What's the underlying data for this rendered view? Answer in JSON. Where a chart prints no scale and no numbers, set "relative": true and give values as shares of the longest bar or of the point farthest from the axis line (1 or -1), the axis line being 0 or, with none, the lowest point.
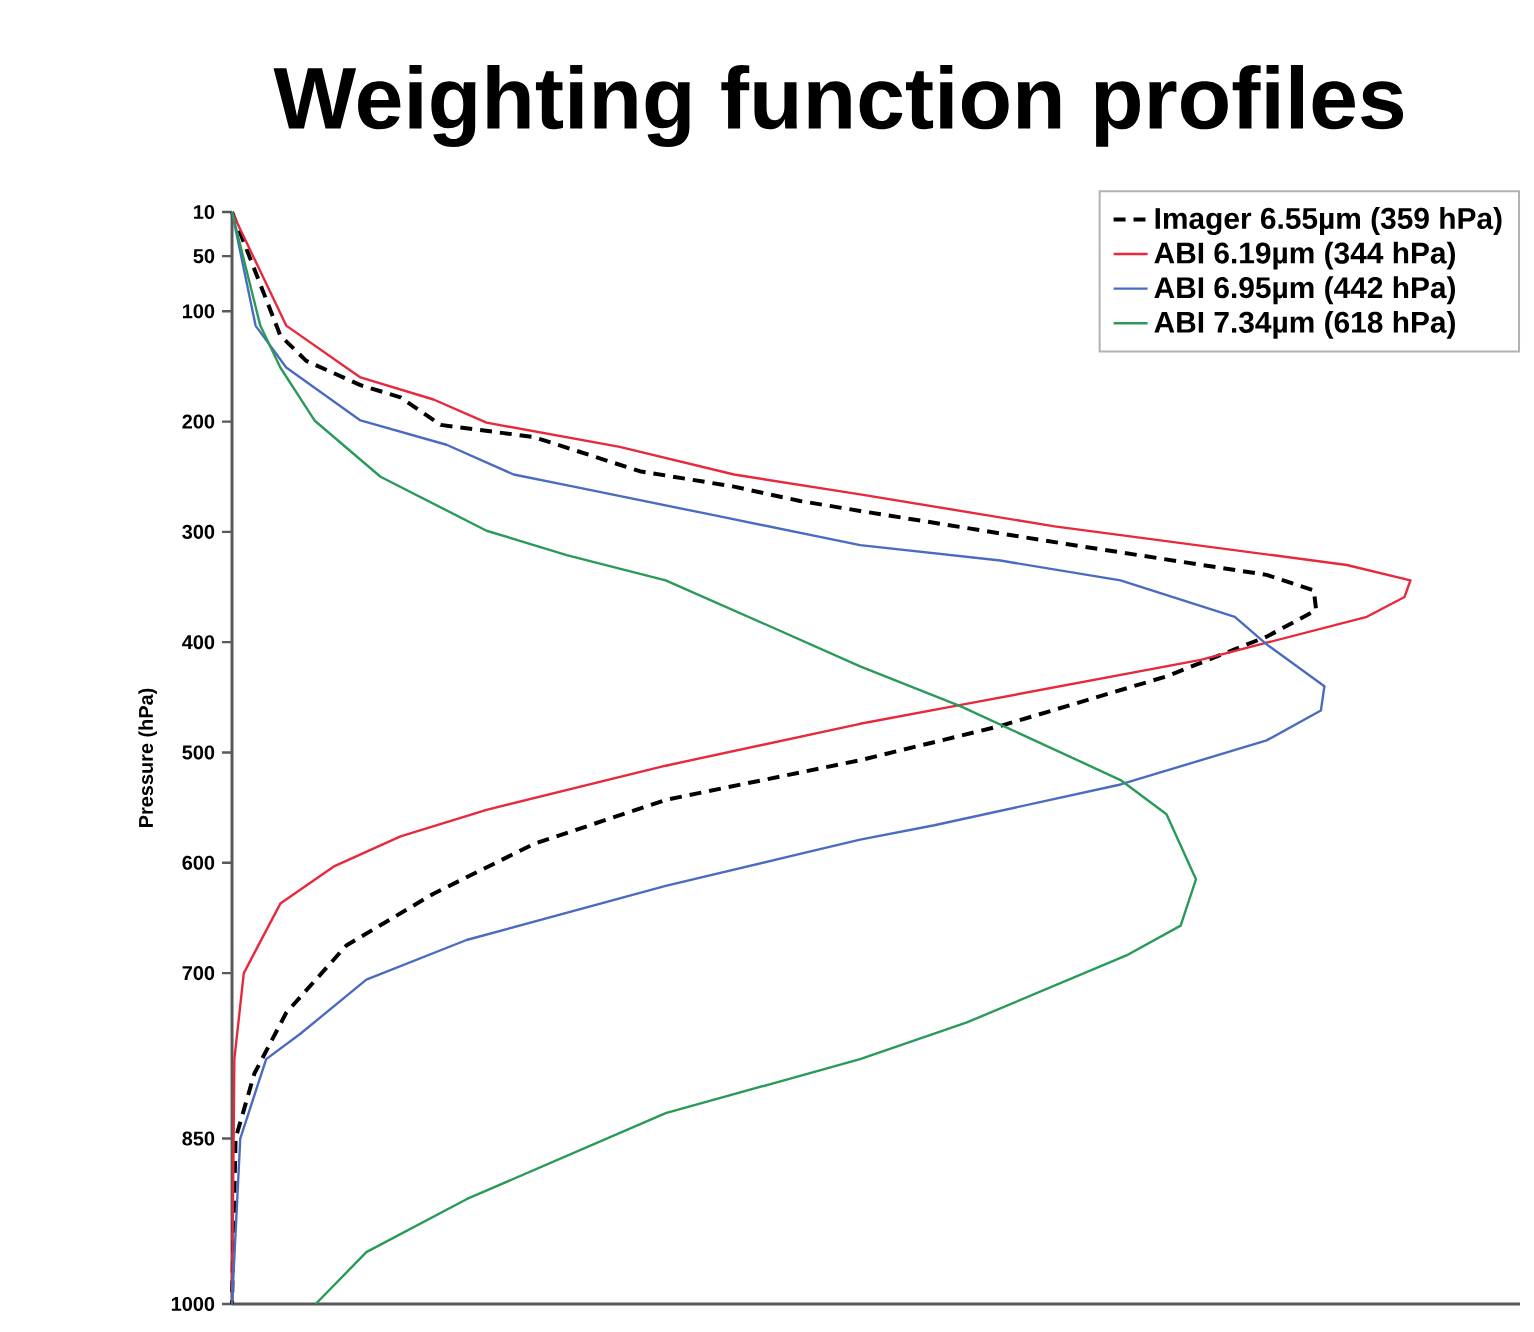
{
  "chart_data": {
    "type": "line",
    "title": "Weighting function profiles",
    "ylabel": "Pressure (hPa)",
    "relative": true,
    "orientation": "horizontal",
    "ylim": [
      1000,
      10
    ],
    "yticks": [
      10,
      50,
      100,
      200,
      300,
      400,
      500,
      600,
      700,
      850,
      1000
    ],
    "legend": "top right",
    "marker": "none",
    "series": [
      {
        "name": "Imager 6.55µm (359 hPa)",
        "color": "#000000",
        "line_style": "dashed",
        "values": [
          0,
          0.041,
          0.063,
          0.109,
          0.143,
          0.177,
          0.256,
          0.346,
          0.426,
          0.482,
          0.533,
          0.708,
          0.878,
          0.918,
          0.92,
          0.878,
          0.793,
          0.652,
          0.533,
          0.368,
          0.256,
          0.171,
          0.097,
          0.046,
          0.019,
          0.003,
          0
        ],
        "x": [
          10,
          122,
          145,
          167,
          178,
          203,
          214,
          245,
          259,
          272,
          281,
          311,
          339,
          353,
          371,
          395,
          431,
          476,
          507,
          543,
          583,
          628,
          675,
          736,
          791,
          850,
          1000
        ]
      },
      {
        "name": "ABI 6.19µm (344 hPa)",
        "color": "#e8283c",
        "line_style": "solid",
        "values": [
          0,
          0.046,
          0.109,
          0.171,
          0.216,
          0.329,
          0.426,
          0.533,
          0.698,
          0.946,
          1,
          0.995,
          0.963,
          0.822,
          0.623,
          0.533,
          0.368,
          0.216,
          0.143,
          0.087,
          0.041,
          0.01,
          0.002,
          0
        ],
        "x": [
          10,
          113,
          160,
          180,
          201,
          223,
          248,
          266,
          295,
          330,
          344,
          359,
          377,
          416,
          456,
          474,
          512,
          552,
          576,
          603,
          637,
          700,
          778,
          1000
        ]
      },
      {
        "name": "ABI 6.95µm (442 hPa)",
        "color": "#4a6bbf",
        "line_style": "solid",
        "values": [
          0,
          0.02,
          0.046,
          0.109,
          0.182,
          0.239,
          0.29,
          0.414,
          0.533,
          0.652,
          0.754,
          0.851,
          0.878,
          0.927,
          0.924,
          0.878,
          0.754,
          0.596,
          0.533,
          0.482,
          0.368,
          0.199,
          0.114,
          0.058,
          0.029,
          0.007,
          0
        ],
        "x": [
          10,
          113,
          151,
          199,
          221,
          248,
          259,
          286,
          312,
          326,
          344,
          377,
          402,
          440,
          462,
          489,
          529,
          566,
          579,
          592,
          621,
          670,
          706,
          755,
          778,
          850,
          1000
        ]
      },
      {
        "name": "ABI 7.34µm (618 hPa)",
        "color": "#2a9a5a",
        "line_style": "solid",
        "values": [
          0,
          0.024,
          0.041,
          0.07,
          0.126,
          0.216,
          0.284,
          0.368,
          0.453,
          0.533,
          0.618,
          0.754,
          0.793,
          0.818,
          0.805,
          0.759,
          0.623,
          0.533,
          0.368,
          0.199,
          0.114,
          0.071
        ],
        "x": [
          10,
          113,
          151,
          199,
          250,
          299,
          321,
          344,
          384,
          422,
          458,
          525,
          556,
          615,
          657,
          684,
          745,
          778,
          827,
          905,
          953,
          1000
        ]
      }
    ]
  }
}
